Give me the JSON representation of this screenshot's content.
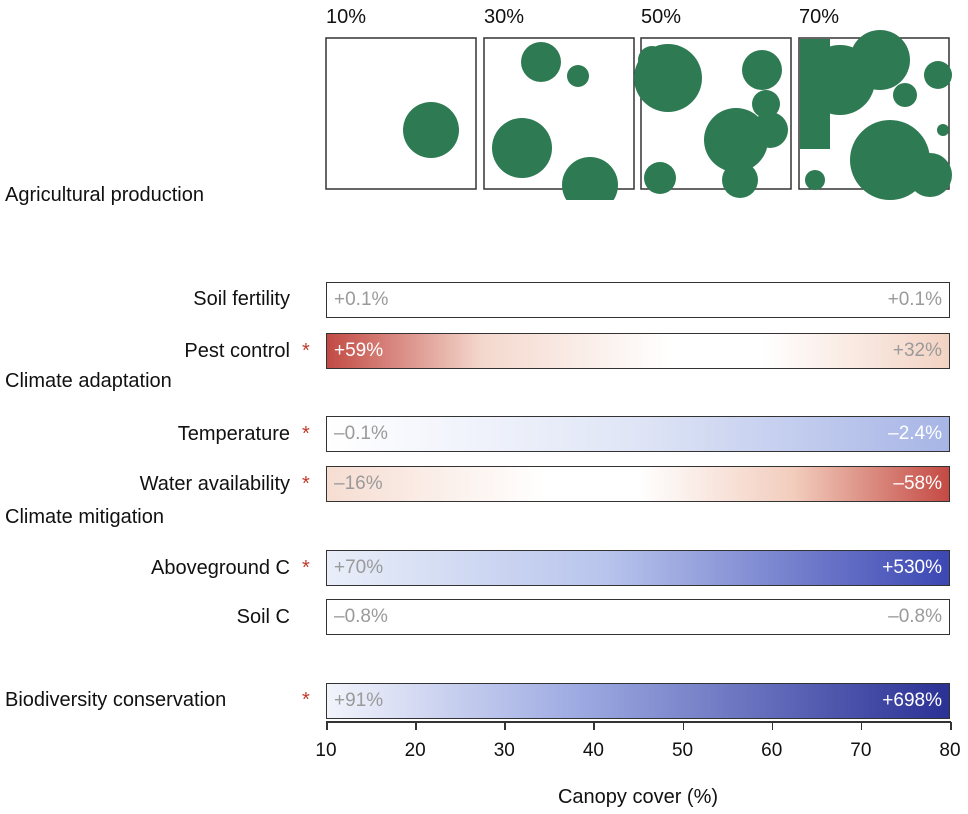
{
  "canopy_panels": [
    "10%",
    "30%",
    "50%",
    "70%"
  ],
  "headings": [
    "Agricultural production",
    "Climate adaptation",
    "Climate mitigation"
  ],
  "rows": [
    {
      "label": "Soil fertility",
      "left": "+0.1%",
      "right": "+0.1%"
    },
    {
      "label": "Pest control",
      "marker": "*",
      "left": "+59%",
      "right": "+32%"
    },
    {
      "label": "Temperature",
      "marker": "*",
      "left": "–0.1%",
      "right": "–2.4%"
    },
    {
      "label": "Water availability",
      "marker": "*",
      "left": "–16%",
      "right": "–58%"
    },
    {
      "label": "Aboveground C",
      "marker": "*",
      "left": "+70%",
      "right": "+530%"
    },
    {
      "label": "Soil C",
      "left": "–0.8%",
      "right": "–0.8%"
    },
    {
      "label": "Biodiversity conservation",
      "marker": "*",
      "left": "+91%",
      "right": "+698%"
    }
  ],
  "axis": {
    "ticks": [
      10,
      20,
      30,
      40,
      50,
      60,
      70,
      80
    ],
    "label": "Canopy cover (%)"
  }
}
